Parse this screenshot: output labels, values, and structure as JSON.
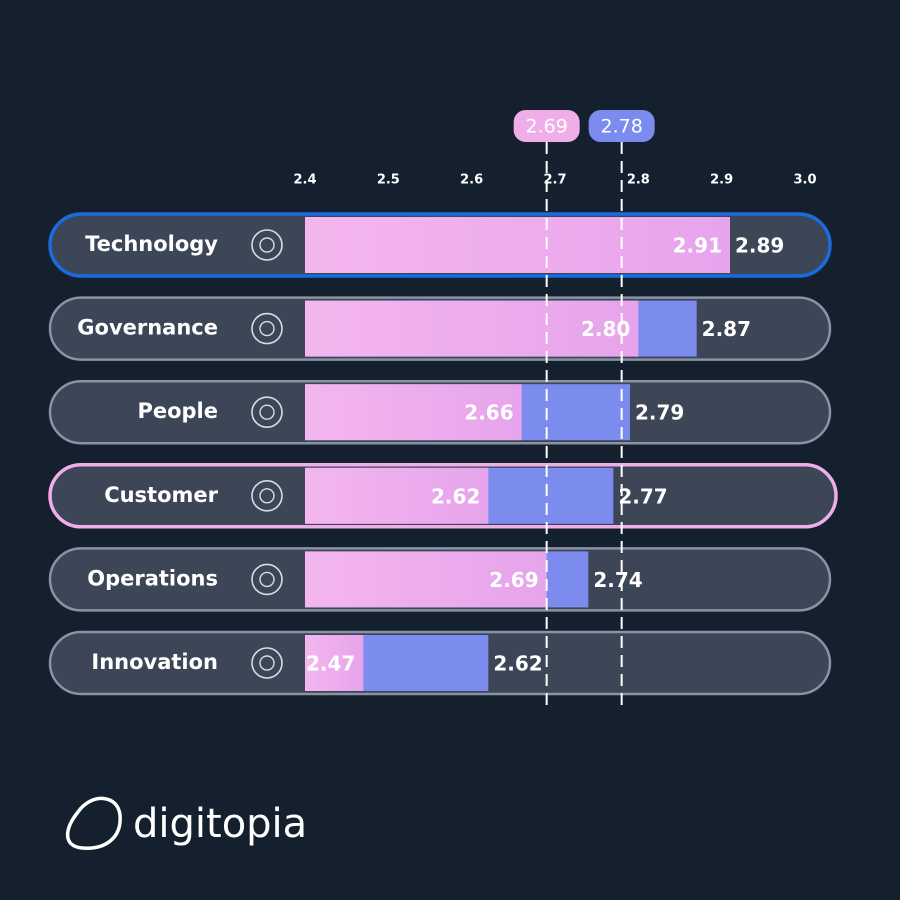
{
  "chart_data": {
    "type": "bar",
    "orientation": "horizontal",
    "categories": [
      "Technology",
      "Governance",
      "People",
      "Customer",
      "Operations",
      "Innovation"
    ],
    "series": [
      {
        "color": "#f0aee9",
        "values": [
          2.91,
          2.8,
          2.66,
          2.62,
          2.69,
          2.47
        ],
        "value_labels": [
          "2.91",
          "2.80",
          "2.66",
          "2.62",
          "2.69",
          "2.47"
        ]
      },
      {
        "color": "#7b8cee",
        "values": [
          2.89,
          2.87,
          2.79,
          2.77,
          2.74,
          2.62
        ],
        "value_labels": [
          "2.89",
          "2.87",
          "2.79",
          "2.77",
          "2.74",
          "2.62"
        ]
      }
    ],
    "xlim": [
      2.4,
      3
    ],
    "xticks": [
      2.4,
      2.5,
      2.6,
      2.7,
      2.8,
      2.9,
      {
        "value": 3,
        "label": "3.0"
      }
    ],
    "reference_lines": [
      {
        "value": 2.69,
        "color": "#f0aee9"
      },
      {
        "value": 2.78,
        "color": "#7b8cee"
      }
    ],
    "row_outlines": [
      "#1a6be0",
      "#8a93a3",
      "#8a93a3",
      "#f0aee9",
      "#8a93a3",
      "#8a93a3"
    ]
  },
  "brand": {
    "name": "digitopia"
  }
}
